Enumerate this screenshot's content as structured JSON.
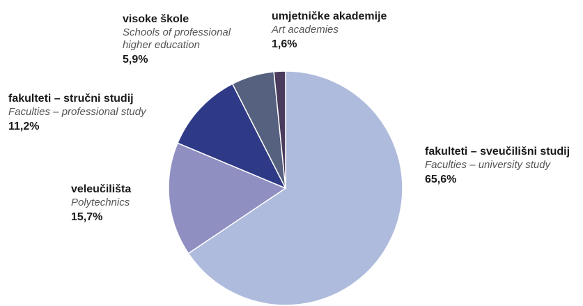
{
  "chart_data": {
    "type": "pie",
    "start_angle_deg": 0,
    "direction": "clockwise",
    "slices": [
      {
        "label_hr": "fakulteti – sveučilišni studij",
        "label_en": "Faculties – university study",
        "value": 65.6,
        "value_label": "65,6%",
        "color": "#aebbdc"
      },
      {
        "label_hr": "veleučilišta",
        "label_en": "Polytechnics",
        "value": 15.7,
        "value_label": "15,7%",
        "color": "#8f8fc2"
      },
      {
        "label_hr": "fakulteti – stručni studij",
        "label_en": "Faculties – professional study",
        "value": 11.2,
        "value_label": "11,2%",
        "color": "#2e3a86"
      },
      {
        "label_hr": "visoke škole",
        "label_en": "Schools of professional higher education",
        "value": 5.9,
        "value_label": "5,9%",
        "color": "#56607f"
      },
      {
        "label_hr": "umjetničke akademije",
        "label_en": "Art academies",
        "value": 1.6,
        "value_label": "1,6%",
        "color": "#4a3a5c"
      }
    ]
  }
}
